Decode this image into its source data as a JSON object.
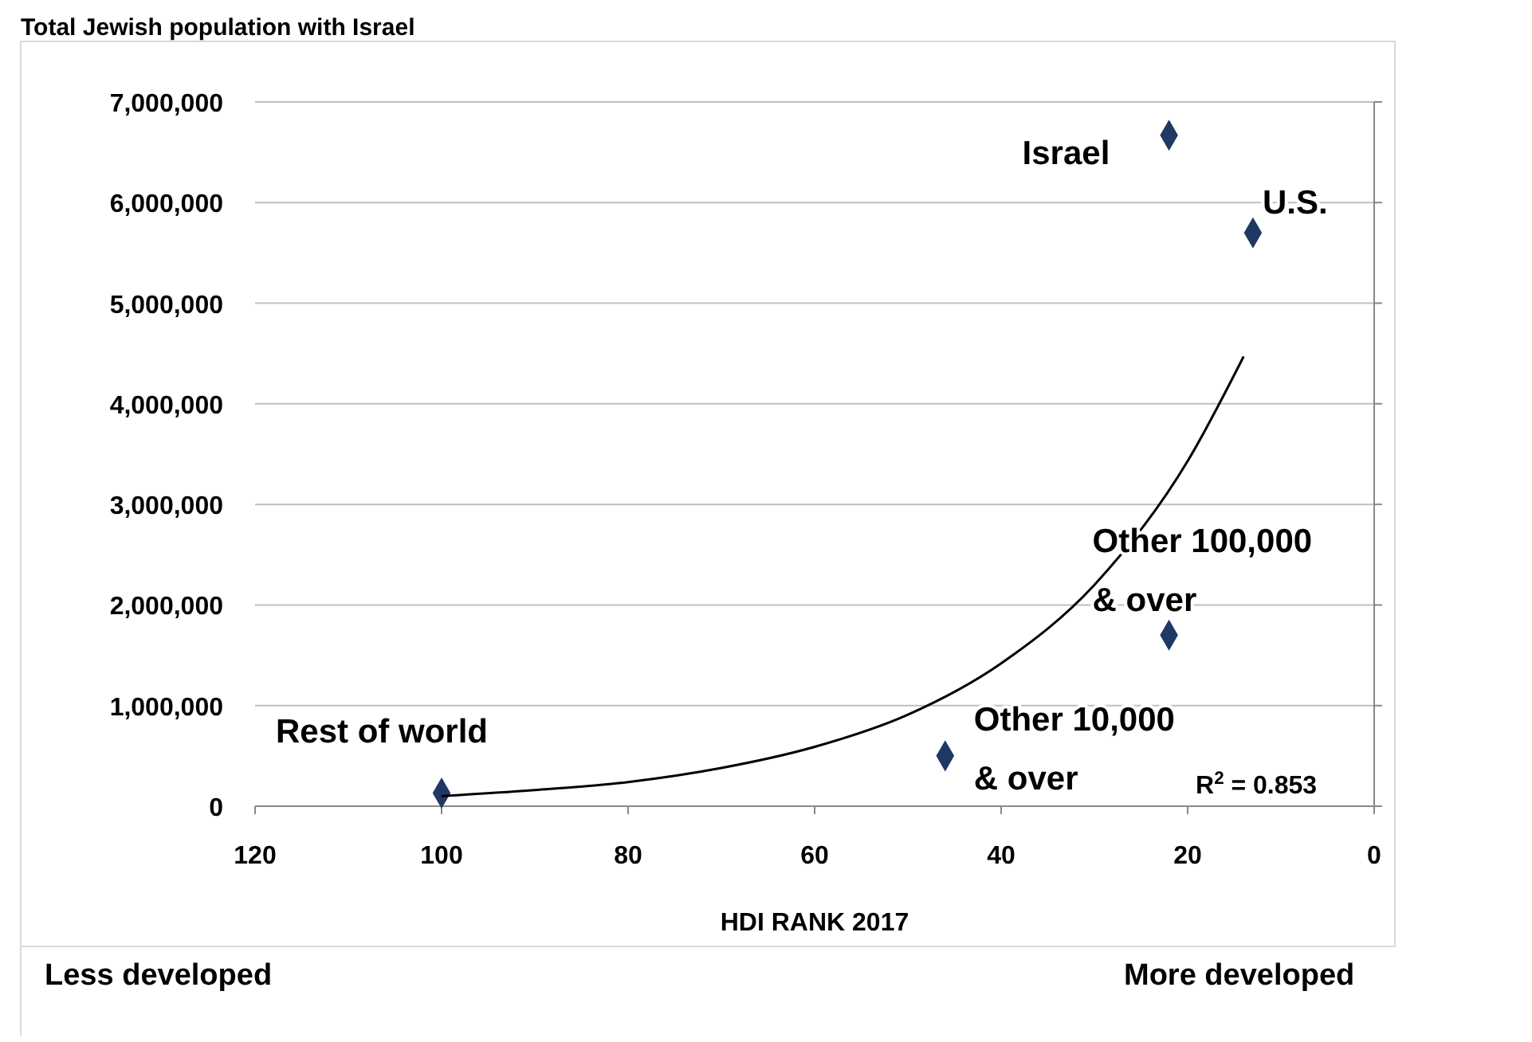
{
  "chart_data": {
    "type": "scatter",
    "title": "Total Jewish population with Israel",
    "xlabel": "HDI RANK 2017",
    "xlim": [
      120,
      0
    ],
    "xticks": [
      120,
      100,
      80,
      60,
      40,
      20,
      0
    ],
    "ylim": [
      0,
      7000000
    ],
    "yticks": [
      {
        "value": 0,
        "label": "0"
      },
      {
        "value": 1000000,
        "label": "1,000,000"
      },
      {
        "value": 2000000,
        "label": "2,000,000"
      },
      {
        "value": 3000000,
        "label": "3,000,000"
      },
      {
        "value": 4000000,
        "label": "4,000,000"
      },
      {
        "value": 5000000,
        "label": "5,000,000"
      },
      {
        "value": 6000000,
        "label": "6,000,000"
      },
      {
        "value": 7000000,
        "label": "7,000,000"
      }
    ],
    "grid": "y",
    "marker": "diamond",
    "series": [
      {
        "color": "#1f3864",
        "x": [
          100,
          46,
          22,
          22,
          13
        ],
        "values": [
          130000,
          500000,
          1700000,
          6670000,
          5700000
        ]
      },
      {
        "type": "line",
        "color": "#000000",
        "marker": "none",
        "x": [
          100,
          90,
          80,
          70,
          60,
          50,
          40,
          30,
          20,
          14
        ],
        "values": [
          100000,
          160000,
          240000,
          380000,
          590000,
          910000,
          1420000,
          2200000,
          3430000,
          4470000
        ]
      }
    ],
    "annotations": [
      {
        "text": "Rest of world",
        "x": 100,
        "y": 130000
      },
      {
        "text": "Other 10,000\n& over",
        "x": 46,
        "y": 500000
      },
      {
        "text": "Other 100,000\n& over",
        "x": 22,
        "y": 1700000
      },
      {
        "text": "Israel",
        "x": 22,
        "y": 6670000
      },
      {
        "text": "U.S.",
        "x": 13,
        "y": 5700000
      },
      "R$^{2}$ = 0.853",
      "Less developed",
      "More developed"
    ]
  }
}
